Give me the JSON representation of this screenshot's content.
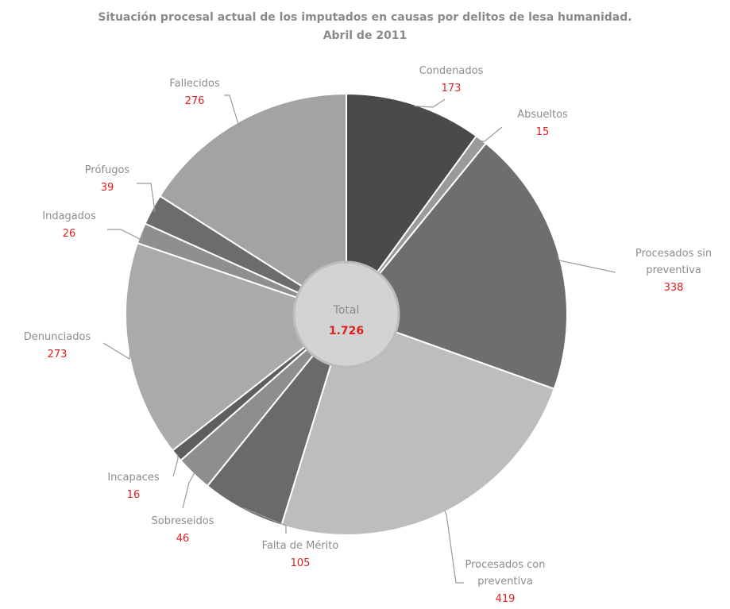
{
  "chart_data": {
    "type": "pie",
    "title": "Situación procesal actual de los imputados en causas por delitos de lesa humanidad.",
    "subtitle": "Abril de 2011",
    "center_label": "Total",
    "center_value": "1.726",
    "slices": [
      {
        "name": "Condenados",
        "value": 173,
        "value_text": "173",
        "color": "#4a4a4a",
        "label_lines": [
          "Condenados"
        ]
      },
      {
        "name": "Absueltos",
        "value": 15,
        "value_text": "15",
        "color": "#9a9a9a",
        "label_lines": [
          "Absueltos"
        ]
      },
      {
        "name": "Procesados sin preventiva",
        "value": 338,
        "value_text": "338",
        "color": "#6e6e6e",
        "label_lines": [
          "Procesados sin",
          "preventiva"
        ]
      },
      {
        "name": "Procesados con preventiva",
        "value": 419,
        "value_text": "419",
        "color": "#bdbdbd",
        "label_lines": [
          "Procesados con",
          "preventiva"
        ]
      },
      {
        "name": "Falta de Mérito",
        "value": 105,
        "value_text": "105",
        "color": "#6a6a6a",
        "label_lines": [
          "Falta de Mérito"
        ]
      },
      {
        "name": "Sobreseidos",
        "value": 46,
        "value_text": "46",
        "color": "#8e8e8e",
        "label_lines": [
          "Sobreseidos"
        ]
      },
      {
        "name": "Incapaces",
        "value": 16,
        "value_text": "16",
        "color": "#5e5e5e",
        "label_lines": [
          "Incapaces"
        ]
      },
      {
        "name": "Denunciados",
        "value": 273,
        "value_text": "273",
        "color": "#aaaaaa",
        "label_lines": [
          "Denunciados"
        ]
      },
      {
        "name": "Indagados",
        "value": 26,
        "value_text": "26",
        "color": "#8f8f8f",
        "label_lines": [
          "Indagados"
        ]
      },
      {
        "name": "Prófugos",
        "value": 39,
        "value_text": "39",
        "color": "#6c6c6c",
        "label_lines": [
          "Prófugos"
        ]
      },
      {
        "name": "Fallecidos",
        "value": 276,
        "value_text": "276",
        "color": "#a3a3a3",
        "label_lines": [
          "Fallecidos"
        ]
      }
    ]
  }
}
